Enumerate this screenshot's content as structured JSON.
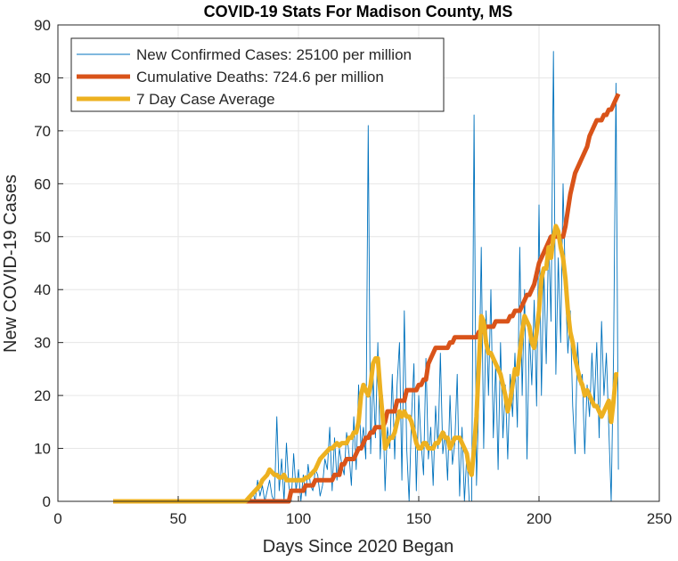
{
  "chart_data": {
    "type": "line",
    "title": "COVID-19 Stats For Madison County, MS",
    "xlabel": "Days Since 2020 Began",
    "ylabel": "New COVID-19 Cases",
    "xlim": [
      0,
      250
    ],
    "xticks": [
      0,
      50,
      100,
      150,
      200,
      250
    ],
    "ylim": [
      0,
      90
    ],
    "yticks": [
      0,
      10,
      20,
      30,
      40,
      50,
      60,
      70,
      80,
      90
    ],
    "grid": true,
    "legend": "top-left",
    "x": [
      23,
      24,
      25,
      26,
      27,
      28,
      29,
      30,
      31,
      32,
      33,
      34,
      35,
      36,
      37,
      38,
      39,
      40,
      41,
      42,
      43,
      44,
      45,
      46,
      47,
      48,
      49,
      50,
      51,
      52,
      53,
      54,
      55,
      56,
      57,
      58,
      59,
      60,
      61,
      62,
      63,
      64,
      65,
      66,
      67,
      68,
      69,
      70,
      71,
      72,
      73,
      74,
      75,
      76,
      77,
      78,
      79,
      80,
      81,
      82,
      83,
      84,
      85,
      86,
      87,
      88,
      89,
      90,
      91,
      92,
      93,
      94,
      95,
      96,
      97,
      98,
      99,
      100,
      101,
      102,
      103,
      104,
      105,
      106,
      107,
      108,
      109,
      110,
      111,
      112,
      113,
      114,
      115,
      116,
      117,
      118,
      119,
      120,
      121,
      122,
      123,
      124,
      125,
      126,
      127,
      128,
      129,
      130,
      131,
      132,
      133,
      134,
      135,
      136,
      137,
      138,
      139,
      140,
      141,
      142,
      143,
      144,
      145,
      146,
      147,
      148,
      149,
      150,
      151,
      152,
      153,
      154,
      155,
      156,
      157,
      158,
      159,
      160,
      161,
      162,
      163,
      164,
      165,
      166,
      167,
      168,
      169,
      170,
      171,
      172,
      173,
      174,
      175,
      176,
      177,
      178,
      179,
      180,
      181,
      182,
      183,
      184,
      185,
      186,
      187,
      188,
      189,
      190,
      191,
      192,
      193,
      194,
      195,
      196,
      197,
      198,
      199,
      200,
      201,
      202,
      203,
      204,
      205,
      206,
      207,
      208,
      209,
      210,
      211,
      212,
      213,
      214,
      215,
      216,
      217,
      218,
      219,
      220,
      221,
      222,
      223,
      224,
      225,
      226,
      227,
      228,
      229,
      230,
      231,
      232,
      233
    ],
    "series": [
      {
        "name": "New Confirmed Cases: 25100 per million",
        "color": "#0072bd",
        "width": 0.9,
        "values": [
          0,
          0,
          0,
          0,
          0,
          0,
          0,
          0,
          0,
          0,
          0,
          0,
          0,
          0,
          0,
          0,
          0,
          0,
          0,
          0,
          0,
          0,
          0,
          0,
          0,
          0,
          0,
          0,
          0,
          0,
          0,
          0,
          0,
          0,
          0,
          0,
          0,
          0,
          0,
          0,
          0,
          0,
          0,
          0,
          0,
          0,
          0,
          0,
          0,
          0,
          0,
          0,
          0,
          0,
          0,
          0,
          1,
          0,
          2,
          0,
          4,
          1,
          3,
          0,
          2,
          4,
          1,
          0,
          16,
          2,
          8,
          0,
          11,
          3,
          0,
          9,
          2,
          6,
          0,
          5,
          1,
          7,
          3,
          2,
          6,
          5,
          1,
          3,
          8,
          6,
          14,
          2,
          12,
          4,
          10,
          7,
          5,
          13,
          9,
          3,
          16,
          6,
          22,
          10,
          14,
          8,
          71,
          9,
          24,
          12,
          30,
          8,
          20,
          2,
          14,
          10,
          24,
          8,
          22,
          30,
          4,
          36,
          10,
          0,
          16,
          26,
          2,
          20,
          11,
          5,
          27,
          8,
          14,
          3,
          18,
          10,
          28,
          9,
          13,
          4,
          20,
          7,
          11,
          24,
          1,
          14,
          0,
          9,
          0,
          0,
          73,
          3,
          20,
          48,
          10,
          36,
          20,
          40,
          12,
          26,
          6,
          30,
          12,
          22,
          8,
          24,
          16,
          28,
          14,
          48,
          20,
          40,
          8,
          32,
          22,
          38,
          18,
          56,
          20,
          44,
          26,
          50,
          34,
          85,
          24,
          46,
          30,
          60,
          40,
          28,
          36,
          18,
          9,
          30,
          22,
          24,
          9,
          22,
          16,
          28,
          18,
          30,
          12,
          34,
          20,
          28,
          14,
          0,
          28,
          79,
          6
        ]
      },
      {
        "name": "Cumulative Deaths: 724.6 per million",
        "color": "#d95319",
        "width": 5,
        "values": [
          0,
          0,
          0,
          0,
          0,
          0,
          0,
          0,
          0,
          0,
          0,
          0,
          0,
          0,
          0,
          0,
          0,
          0,
          0,
          0,
          0,
          0,
          0,
          0,
          0,
          0,
          0,
          0,
          0,
          0,
          0,
          0,
          0,
          0,
          0,
          0,
          0,
          0,
          0,
          0,
          0,
          0,
          0,
          0,
          0,
          0,
          0,
          0,
          0,
          0,
          0,
          0,
          0,
          0,
          0,
          0,
          0,
          0,
          0,
          0,
          0,
          0,
          0,
          0,
          0,
          0,
          0,
          0,
          0,
          0,
          0,
          0,
          0,
          0,
          2,
          2,
          2,
          2,
          2,
          2,
          3,
          3,
          3,
          3,
          4,
          4,
          4,
          4,
          4,
          4,
          4,
          4,
          5,
          5,
          5,
          7,
          7,
          8,
          8,
          8,
          8,
          9,
          10,
          10,
          11,
          12,
          12,
          13,
          13,
          14,
          14,
          14,
          14,
          15,
          17,
          17,
          17,
          17,
          19,
          19,
          19,
          19,
          21,
          21,
          21,
          21,
          21,
          22,
          22,
          23,
          23,
          26,
          27,
          28,
          29,
          29,
          29,
          29,
          29,
          29,
          30,
          30,
          31,
          31,
          31,
          31,
          31,
          31,
          31,
          31,
          31,
          31,
          32,
          32,
          32,
          33,
          33,
          33,
          33,
          34,
          34,
          34,
          34,
          34,
          34,
          35,
          35,
          36,
          36,
          36,
          37,
          38,
          39,
          39,
          40,
          41,
          43,
          45,
          46,
          47,
          48,
          49,
          50,
          50,
          50,
          50,
          50,
          50,
          52,
          55,
          58,
          60,
          62,
          63,
          64,
          65,
          66,
          67,
          69,
          70,
          71,
          72,
          72,
          72,
          73,
          73,
          74,
          74,
          75,
          76,
          77
        ]
      },
      {
        "name": "7 Day Case Average",
        "color": "#edb120",
        "width": 5,
        "values": [
          0,
          0,
          0,
          0,
          0,
          0,
          0,
          0,
          0,
          0,
          0,
          0,
          0,
          0,
          0,
          0,
          0,
          0,
          0,
          0,
          0,
          0,
          0,
          0,
          0,
          0,
          0,
          0,
          0,
          0,
          0,
          0,
          0,
          0,
          0,
          0,
          0,
          0,
          0,
          0,
          0,
          0,
          0,
          0,
          0,
          0,
          0,
          0,
          0,
          0,
          0,
          0,
          0,
          0,
          0,
          0,
          0.5,
          1,
          1.5,
          2,
          2.5,
          3,
          4,
          4.5,
          5,
          6,
          5.5,
          5,
          5,
          4.5,
          4.5,
          5,
          4,
          4,
          4,
          4,
          4,
          4,
          4,
          4,
          4.5,
          4.5,
          5,
          5.5,
          6,
          7,
          8,
          8.5,
          9,
          9.5,
          10,
          10,
          10.5,
          11,
          10.5,
          11,
          11,
          11,
          12,
          12,
          13,
          13,
          15,
          20,
          22,
          21,
          20,
          22,
          26,
          27,
          27,
          21,
          16,
          10,
          11,
          12,
          12,
          13,
          15,
          17,
          16,
          17,
          16,
          16,
          15,
          13,
          11,
          10,
          10,
          11,
          11,
          10,
          10,
          10,
          11,
          11,
          12,
          13,
          12,
          12,
          10,
          11,
          12,
          12,
          12,
          11,
          10,
          9,
          6,
          5,
          10,
          16,
          26,
          35,
          34,
          30,
          28,
          28,
          27,
          26,
          25,
          24,
          22,
          20,
          17,
          19,
          22,
          25,
          24,
          28,
          32,
          35,
          34,
          33,
          30,
          29,
          32,
          36,
          42,
          44,
          44,
          48,
          46,
          50,
          52,
          51,
          48,
          46,
          42,
          36,
          32,
          30,
          27,
          25,
          23,
          22,
          20,
          21,
          20,
          19,
          18,
          18,
          17,
          16,
          17,
          18,
          19,
          15,
          19,
          24,
          24
        ]
      }
    ]
  }
}
